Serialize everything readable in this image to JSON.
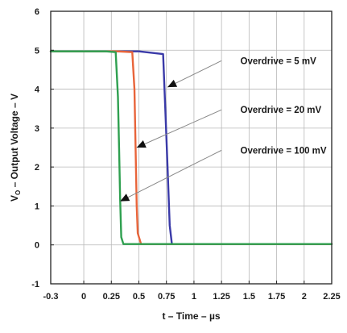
{
  "chart_data": {
    "type": "line",
    "title": "",
    "xlabel": "t – Time – µs",
    "ylabel": "VO – Output Voltage – V",
    "ylabel_parts": {
      "v": "V",
      "sub": "O",
      "rest": " – Output Voltage – V"
    },
    "xlim": [
      -0.3,
      2.25
    ],
    "ylim": [
      -1,
      6
    ],
    "x_ticks": [
      -0.3,
      0,
      0.25,
      0.5,
      0.75,
      1,
      1.25,
      1.5,
      1.75,
      2,
      2.25
    ],
    "x_tick_labels": [
      "-0.3",
      "0",
      "0.25",
      "0.5",
      "0.75",
      "1",
      "1.25",
      "1.5",
      "1.75",
      "2",
      "2.25"
    ],
    "y_ticks": [
      -1,
      0,
      1,
      2,
      3,
      4,
      5,
      6
    ],
    "y_tick_labels": [
      "-1",
      "0",
      "1",
      "2",
      "3",
      "4",
      "5",
      "6"
    ],
    "grid": true,
    "legend": "none",
    "series": [
      {
        "name": "Overdrive = 5 mV",
        "color": "#3a3aa8",
        "x": [
          -0.3,
          0.5,
          0.72,
          0.74,
          0.76,
          0.78,
          0.8,
          2.25
        ],
        "y": [
          4.97,
          4.97,
          4.9,
          3.5,
          2.0,
          0.5,
          0.02,
          0.02
        ]
      },
      {
        "name": "Overdrive = 20 mV",
        "color": "#e8643a",
        "x": [
          -0.3,
          0.3,
          0.44,
          0.46,
          0.47,
          0.48,
          0.49,
          0.52,
          2.25
        ],
        "y": [
          4.97,
          4.97,
          4.95,
          4.0,
          2.5,
          1.0,
          0.3,
          0.02,
          0.02
        ]
      },
      {
        "name": "Overdrive = 100 mV",
        "color": "#2fa050",
        "x": [
          -0.3,
          0.2,
          0.29,
          0.31,
          0.32,
          0.33,
          0.34,
          0.36,
          2.25
        ],
        "y": [
          4.97,
          4.97,
          4.95,
          3.8,
          2.5,
          1.2,
          0.2,
          0.02,
          0.02
        ]
      }
    ],
    "annotations": [
      {
        "text": "Overdrive = 5 mV",
        "label_at": [
          1.45,
          4.73
        ],
        "arrow_from": [
          1.25,
          4.73
        ],
        "arrow_to": [
          0.76,
          4.05
        ]
      },
      {
        "text": "Overdrive = 20 mV",
        "label_at": [
          1.45,
          3.47
        ],
        "arrow_from": [
          1.25,
          3.47
        ],
        "arrow_to": [
          0.48,
          2.5
        ]
      },
      {
        "text": "Overdrive = 100 mV",
        "label_at": [
          1.45,
          2.43
        ],
        "arrow_from": [
          1.25,
          2.43
        ],
        "arrow_to": [
          0.33,
          1.12
        ]
      }
    ]
  }
}
